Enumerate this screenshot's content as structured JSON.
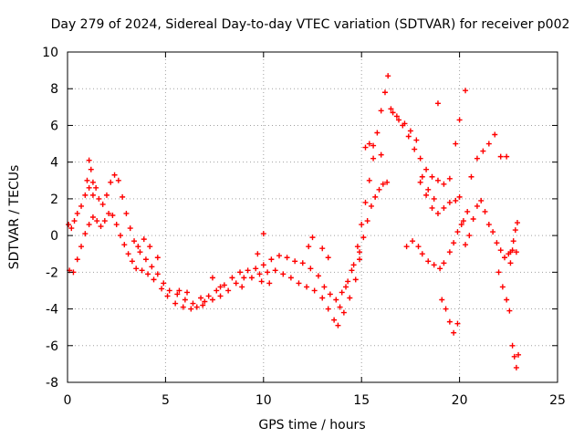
{
  "chart_data": {
    "type": "scatter",
    "title": "Day 279 of 2024, Sidereal Day-to-day VTEC variation (SDTVAR) for receiver p002",
    "xlabel": "GPS time / hours",
    "ylabel": "SDTVAR / TECUs",
    "xlim": [
      0,
      25
    ],
    "ylim": [
      -8,
      10
    ],
    "xticks": [
      0,
      5,
      10,
      15,
      20,
      25
    ],
    "yticks": [
      -8,
      -6,
      -4,
      -2,
      0,
      2,
      4,
      6,
      8,
      10
    ],
    "grid": true,
    "marker": "+",
    "colors": {
      "series": "#ff0000",
      "frame": "#000000",
      "grid": "#a0a0a0"
    },
    "series": [
      {
        "name": "SDTVAR",
        "points": [
          [
            0.05,
            0.6
          ],
          [
            0.2,
            0.4
          ],
          [
            0.35,
            0.8
          ],
          [
            0.5,
            1.2
          ],
          [
            0.7,
            1.6
          ],
          [
            0.9,
            2.2
          ],
          [
            1.1,
            2.6
          ],
          [
            1.3,
            2.9
          ],
          [
            1.45,
            2.6
          ],
          [
            1.6,
            2.0
          ],
          [
            1.8,
            1.7
          ],
          [
            2.0,
            2.2
          ],
          [
            2.2,
            2.9
          ],
          [
            2.4,
            3.3
          ],
          [
            2.6,
            3.0
          ],
          [
            2.8,
            2.1
          ],
          [
            3.0,
            1.2
          ],
          [
            3.2,
            0.4
          ],
          [
            3.4,
            -0.3
          ],
          [
            3.7,
            -0.9
          ],
          [
            4.0,
            -1.3
          ],
          [
            4.3,
            -1.7
          ],
          [
            4.6,
            -2.1
          ],
          [
            4.9,
            -2.6
          ],
          [
            5.2,
            -3.0
          ],
          [
            5.6,
            -3.2
          ],
          [
            6.0,
            -3.5
          ],
          [
            6.4,
            -3.7
          ],
          [
            6.8,
            -3.4
          ],
          [
            7.2,
            -3.3
          ],
          [
            7.6,
            -3.0
          ],
          [
            8.0,
            -2.7
          ],
          [
            8.4,
            -2.3
          ],
          [
            8.8,
            -2.0
          ],
          [
            9.2,
            -1.9
          ],
          [
            9.6,
            -1.8
          ],
          [
            10.0,
            -1.6
          ],
          [
            10.4,
            -1.3
          ],
          [
            10.8,
            -1.1
          ],
          [
            11.2,
            -1.2
          ],
          [
            11.6,
            -1.4
          ],
          [
            12.0,
            -1.5
          ],
          [
            12.4,
            -1.8
          ],
          [
            12.8,
            -2.2
          ],
          [
            13.1,
            -2.8
          ],
          [
            13.4,
            -3.2
          ],
          [
            13.7,
            -3.5
          ],
          [
            14.0,
            -3.1
          ],
          [
            14.3,
            -2.5
          ],
          [
            14.6,
            -1.6
          ],
          [
            14.8,
            -0.6
          ],
          [
            15.0,
            0.6
          ],
          [
            15.2,
            1.8
          ],
          [
            15.4,
            3.0
          ],
          [
            15.6,
            4.2
          ],
          [
            15.8,
            5.6
          ],
          [
            16.0,
            6.8
          ],
          [
            16.2,
            7.8
          ],
          [
            16.35,
            8.7
          ],
          [
            16.5,
            6.9
          ],
          [
            16.8,
            6.5
          ],
          [
            17.1,
            6.0
          ],
          [
            17.4,
            5.4
          ],
          [
            17.7,
            4.7
          ],
          [
            18.0,
            4.2
          ],
          [
            18.3,
            3.6
          ],
          [
            18.6,
            3.2
          ],
          [
            18.9,
            3.0
          ],
          [
            19.2,
            2.8
          ],
          [
            19.5,
            3.1
          ],
          [
            19.8,
            5.0
          ],
          [
            20.0,
            6.3
          ],
          [
            20.3,
            7.9
          ],
          [
            20.6,
            3.2
          ],
          [
            20.9,
            4.2
          ],
          [
            21.2,
            4.6
          ],
          [
            21.5,
            5.0
          ],
          [
            21.8,
            5.5
          ],
          [
            22.1,
            4.3
          ],
          [
            22.4,
            4.3
          ],
          [
            0.1,
            -1.9
          ],
          [
            0.3,
            -2.0
          ],
          [
            0.5,
            -1.3
          ],
          [
            0.7,
            -0.6
          ],
          [
            0.9,
            0.1
          ],
          [
            1.1,
            0.6
          ],
          [
            1.3,
            1.0
          ],
          [
            1.5,
            0.8
          ],
          [
            1.7,
            0.5
          ],
          [
            1.9,
            0.8
          ],
          [
            2.1,
            1.2
          ],
          [
            2.3,
            1.1
          ],
          [
            2.5,
            0.6
          ],
          [
            2.7,
            0.0
          ],
          [
            2.9,
            -0.5
          ],
          [
            3.1,
            -1.0
          ],
          [
            3.3,
            -1.4
          ],
          [
            3.5,
            -1.8
          ],
          [
            3.8,
            -1.9
          ],
          [
            4.1,
            -2.1
          ],
          [
            4.4,
            -2.4
          ],
          [
            4.8,
            -2.9
          ],
          [
            5.1,
            -3.3
          ],
          [
            5.5,
            -3.7
          ],
          [
            5.9,
            -3.9
          ],
          [
            6.3,
            -4.0
          ],
          [
            6.6,
            -3.9
          ],
          [
            7.0,
            -3.6
          ],
          [
            7.4,
            -3.5
          ],
          [
            7.8,
            -3.3
          ],
          [
            8.2,
            -3.0
          ],
          [
            8.6,
            -2.6
          ],
          [
            9.0,
            -2.3
          ],
          [
            9.4,
            -2.3
          ],
          [
            9.8,
            -2.1
          ],
          [
            10.2,
            -2.0
          ],
          [
            10.6,
            -1.9
          ],
          [
            11.0,
            -2.1
          ],
          [
            11.4,
            -2.3
          ],
          [
            11.8,
            -2.6
          ],
          [
            12.2,
            -2.8
          ],
          [
            12.6,
            -3.0
          ],
          [
            13.0,
            -3.4
          ],
          [
            13.3,
            -4.0
          ],
          [
            13.6,
            -4.6
          ],
          [
            13.8,
            -4.9
          ],
          [
            14.1,
            -4.2
          ],
          [
            14.4,
            -3.4
          ],
          [
            14.7,
            -2.4
          ],
          [
            14.9,
            -1.3
          ],
          [
            15.1,
            -0.1
          ],
          [
            15.3,
            0.8
          ],
          [
            15.5,
            1.6
          ],
          [
            15.7,
            2.1
          ],
          [
            15.9,
            2.5
          ],
          [
            16.1,
            2.8
          ],
          [
            16.3,
            2.9
          ],
          [
            16.6,
            6.7
          ],
          [
            16.9,
            6.3
          ],
          [
            17.2,
            6.1
          ],
          [
            17.5,
            5.7
          ],
          [
            17.8,
            5.2
          ],
          [
            18.1,
            3.2
          ],
          [
            18.4,
            2.5
          ],
          [
            18.7,
            2.0
          ],
          [
            17.3,
            -0.6
          ],
          [
            17.6,
            -0.3
          ],
          [
            17.9,
            -0.6
          ],
          [
            18.1,
            -1.0
          ],
          [
            18.4,
            -1.4
          ],
          [
            18.7,
            -1.6
          ],
          [
            19.0,
            -1.8
          ],
          [
            19.2,
            -1.5
          ],
          [
            19.5,
            -0.9
          ],
          [
            19.7,
            -0.4
          ],
          [
            19.9,
            0.2
          ],
          [
            20.1,
            0.6
          ],
          [
            20.3,
            -0.5
          ],
          [
            20.5,
            0.0
          ],
          [
            20.7,
            0.9
          ],
          [
            20.9,
            1.6
          ],
          [
            21.1,
            1.9
          ],
          [
            21.3,
            1.3
          ],
          [
            21.5,
            0.6
          ],
          [
            21.7,
            0.2
          ],
          [
            21.9,
            -0.4
          ],
          [
            22.1,
            -0.8
          ],
          [
            22.3,
            -1.2
          ],
          [
            22.5,
            -1.0
          ],
          [
            22.7,
            -0.8
          ],
          [
            19.1,
            -3.5
          ],
          [
            19.3,
            -4.0
          ],
          [
            19.5,
            -4.7
          ],
          [
            19.7,
            -5.3
          ],
          [
            19.9,
            -4.8
          ],
          [
            22.0,
            -2.0
          ],
          [
            22.2,
            -2.8
          ],
          [
            22.4,
            -3.5
          ],
          [
            22.55,
            -4.1
          ],
          [
            22.6,
            -1.5
          ],
          [
            22.7,
            -6.0
          ],
          [
            22.8,
            -6.6
          ],
          [
            22.9,
            -7.2
          ],
          [
            23.0,
            -6.5
          ],
          [
            22.75,
            -0.3
          ],
          [
            22.85,
            0.3
          ],
          [
            22.95,
            0.7
          ],
          [
            22.9,
            -0.9
          ],
          [
            22.6,
            -0.9
          ],
          [
            18.9,
            7.2
          ],
          [
            18.0,
            2.9
          ],
          [
            18.3,
            2.2
          ],
          [
            18.6,
            1.5
          ],
          [
            18.9,
            1.2
          ],
          [
            19.2,
            1.5
          ],
          [
            19.5,
            1.8
          ],
          [
            19.8,
            1.9
          ],
          [
            20.0,
            2.1
          ],
          [
            20.2,
            0.8
          ],
          [
            20.4,
            1.3
          ],
          [
            1.1,
            4.1
          ],
          [
            1.2,
            3.6
          ],
          [
            1.0,
            3.0
          ],
          [
            1.3,
            2.2
          ],
          [
            12.3,
            -0.6
          ],
          [
            12.5,
            -0.1
          ],
          [
            13.3,
            -1.2
          ],
          [
            13.0,
            -0.7
          ],
          [
            10.0,
            0.1
          ],
          [
            9.7,
            -1.0
          ],
          [
            9.9,
            -2.5
          ],
          [
            10.3,
            -2.6
          ],
          [
            8.9,
            -2.8
          ],
          [
            7.4,
            -2.3
          ],
          [
            7.8,
            -2.8
          ],
          [
            6.9,
            -3.8
          ],
          [
            5.7,
            -3.0
          ],
          [
            6.1,
            -3.1
          ],
          [
            4.6,
            -1.2
          ],
          [
            4.2,
            -0.6
          ],
          [
            3.9,
            -0.2
          ],
          [
            3.6,
            -0.6
          ],
          [
            14.9,
            -0.9
          ],
          [
            14.5,
            -1.9
          ],
          [
            14.2,
            -2.8
          ],
          [
            13.9,
            -3.9
          ],
          [
            15.2,
            4.8
          ],
          [
            15.4,
            5.0
          ],
          [
            15.6,
            4.9
          ],
          [
            16.0,
            4.4
          ]
        ]
      }
    ]
  }
}
